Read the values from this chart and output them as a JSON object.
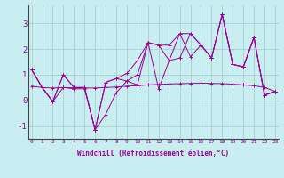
{
  "xlabel": "Windchill (Refroidissement éolien,°C)",
  "x": [
    0,
    1,
    2,
    3,
    4,
    5,
    6,
    7,
    8,
    9,
    10,
    11,
    12,
    13,
    14,
    15,
    16,
    17,
    18,
    19,
    20,
    21,
    22,
    23
  ],
  "series": [
    [
      1.2,
      0.5,
      -0.05,
      1.0,
      0.5,
      0.5,
      -1.15,
      0.7,
      0.85,
      0.75,
      0.6,
      2.25,
      2.15,
      1.55,
      2.6,
      1.7,
      2.15,
      1.65,
      3.35,
      1.4,
      1.3,
      2.45,
      0.2,
      0.35
    ],
    [
      1.2,
      0.5,
      -0.05,
      0.5,
      0.45,
      0.45,
      -1.15,
      -0.55,
      0.3,
      0.75,
      1.0,
      2.25,
      0.45,
      1.55,
      1.65,
      2.6,
      2.15,
      1.65,
      3.35,
      1.4,
      1.3,
      2.45,
      0.2,
      0.35
    ],
    [
      1.2,
      0.5,
      -0.05,
      1.0,
      0.5,
      0.5,
      -1.15,
      0.7,
      0.85,
      1.05,
      1.55,
      2.25,
      2.15,
      2.15,
      2.6,
      2.6,
      2.15,
      1.65,
      3.35,
      1.4,
      1.3,
      2.45,
      0.2,
      0.35
    ],
    [
      0.55,
      0.5,
      0.48,
      0.5,
      0.48,
      0.48,
      0.48,
      0.5,
      0.52,
      0.55,
      0.57,
      0.6,
      0.62,
      0.64,
      0.65,
      0.66,
      0.67,
      0.66,
      0.65,
      0.63,
      0.6,
      0.57,
      0.5,
      0.35
    ]
  ],
  "line_color": "#990099",
  "bg_color": "#c8eef0",
  "grid_color": "#a0ccc8",
  "ylim": [
    -1.5,
    3.7
  ],
  "xlim": [
    -0.3,
    23.3
  ],
  "yticks": [
    -1,
    0,
    1,
    2,
    3
  ],
  "xticks": [
    0,
    1,
    2,
    3,
    4,
    5,
    6,
    7,
    8,
    9,
    10,
    11,
    12,
    13,
    14,
    15,
    16,
    17,
    18,
    19,
    20,
    21,
    22,
    23
  ]
}
